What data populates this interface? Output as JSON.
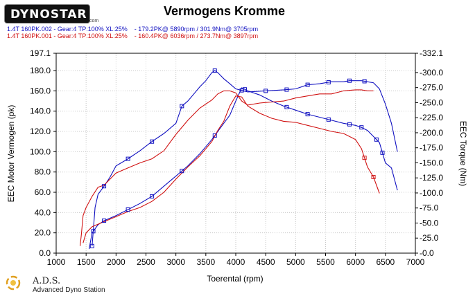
{
  "header": {
    "logo_text": "DYNOSTAR",
    "logo_sub": ".com",
    "title": "Vermogens Kromme"
  },
  "runs": [
    {
      "label": "1.4T 160PK.002 - Gear:4 TP:100% XL:25%    - 179.2PK@ 5890rpm / 301.9Nm@ 3705rpm",
      "color": "#1010c0"
    },
    {
      "label": "1.4T 160PK.001 - Gear:4 TP:100% XL:25%    - 160.4PK@ 6036rpm / 273.7Nm@ 3897rpm",
      "color": "#d01010"
    }
  ],
  "footer": {
    "name": "A.D.S.",
    "desc": "Advanced Dyno Station"
  },
  "chart_data": {
    "type": "line",
    "title": "Vermogens Kromme",
    "xlabel": "Toerental (rpm)",
    "ylabel": "EEC Motor Vermogen (pk)",
    "y2label": "EEC Torque (Nm)",
    "xlim": [
      1000,
      7000
    ],
    "ylim": [
      0,
      197.1
    ],
    "y2lim": [
      0,
      332.1
    ],
    "xticks": [
      "1000",
      "1500",
      "2000",
      "2500",
      "3000",
      "3500",
      "4000",
      "4500",
      "5000",
      "5500",
      "6000",
      "6500",
      "7000"
    ],
    "yticks": [
      "0.0",
      "20.0",
      "40.0",
      "60.0",
      "80.0",
      "100.0",
      "120.0",
      "140.0",
      "160.0",
      "180.0",
      "197.1"
    ],
    "y2ticks": [
      "-0.0",
      "-25.0",
      "-50.0",
      "-75.0",
      "-100.0",
      "-125.0",
      "-150.0",
      "-175.0",
      "-200.0",
      "-225.0",
      "-250.0",
      "-275.0",
      "-300.0",
      "-332.1"
    ],
    "grid": true,
    "series": [
      {
        "name": "1.4T 160PK.002 torque",
        "color": "#1010c0",
        "axis": "left",
        "x": [
          1600,
          1650,
          1700,
          1800,
          1900,
          2000,
          2200,
          2400,
          2600,
          2800,
          3000,
          3100,
          3200,
          3300,
          3400,
          3500,
          3600,
          3650,
          3700,
          3800,
          3900,
          4000,
          4200,
          4500,
          4800,
          5000,
          5200,
          5400,
          5600,
          5800,
          5900,
          6000,
          6100,
          6200,
          6300,
          6400,
          6500,
          6600,
          6700
        ],
        "y": [
          7,
          45,
          58,
          66,
          75,
          86,
          93,
          101,
          110,
          118,
          128,
          145,
          150,
          157,
          164,
          170,
          178,
          180,
          178,
          172,
          167,
          162,
          159,
          160,
          161,
          162,
          166,
          167,
          169,
          169,
          170,
          170,
          170,
          169,
          168,
          162,
          147,
          128,
          100
        ]
      },
      {
        "name": "1.4T 160PK.002 power",
        "color": "#1010c0",
        "axis": "left",
        "x": [
          1550,
          1600,
          1700,
          1800,
          2000,
          2200,
          2400,
          2600,
          2800,
          3000,
          3200,
          3400,
          3600,
          3800,
          3900,
          4000,
          4100,
          4200,
          4400,
          4600,
          4800,
          5000,
          5200,
          5400,
          5600,
          5800,
          6000,
          6100,
          6200,
          6300,
          6400,
          6500,
          6600,
          6700
        ],
        "y": [
          4,
          20,
          28,
          32,
          37,
          43,
          49,
          56,
          66,
          76,
          86,
          98,
          112,
          128,
          136,
          150,
          163,
          160,
          156,
          150,
          145,
          141,
          137,
          134,
          131,
          128,
          126,
          124,
          121,
          115,
          109,
          89,
          84,
          62
        ]
      },
      {
        "name": "1.4T 160PK.001 torque",
        "color": "#d01010",
        "axis": "left",
        "x": [
          1400,
          1420,
          1450,
          1500,
          1600,
          1700,
          1800,
          2000,
          2200,
          2400,
          2600,
          2800,
          3000,
          3200,
          3400,
          3600,
          3700,
          3800,
          3900,
          4000,
          4100,
          4200,
          4400,
          4600,
          4800,
          5000,
          5200,
          5400,
          5600,
          5800,
          6000,
          6100,
          6200,
          6300
        ],
        "y": [
          7,
          18,
          37,
          45,
          56,
          65,
          67,
          79,
          84,
          89,
          93,
          101,
          117,
          131,
          143,
          151,
          157,
          160,
          160,
          158,
          150,
          146,
          148,
          149,
          150,
          153,
          155,
          157,
          157,
          160,
          161,
          161,
          160,
          160
        ]
      },
      {
        "name": "1.4T 160PK.001 power",
        "color": "#d01010",
        "axis": "left",
        "x": [
          1450,
          1500,
          1600,
          1800,
          2000,
          2200,
          2400,
          2600,
          2800,
          3000,
          3200,
          3400,
          3600,
          3700,
          3800,
          3900,
          4000,
          4100,
          4200,
          4400,
          4600,
          4800,
          5000,
          5200,
          5400,
          5600,
          5800,
          6000,
          6100,
          6200,
          6300,
          6400
        ],
        "y": [
          10,
          20,
          26,
          31,
          36,
          41,
          45,
          51,
          60,
          73,
          85,
          96,
          110,
          121,
          130,
          145,
          155,
          154,
          145,
          138,
          133,
          130,
          129,
          126,
          123,
          120,
          118,
          112,
          103,
          85,
          75,
          59
        ]
      }
    ],
    "markers": [
      {
        "series": 0,
        "x": [
          1600,
          1800,
          2200,
          2600,
          3100,
          3650,
          4100,
          4500,
          4850,
          5200,
          5550,
          5900,
          6150
        ]
      },
      {
        "series": 1,
        "x": [
          1620,
          1800,
          2200,
          2600,
          3100,
          3650,
          4150,
          4850,
          5200,
          5550,
          5900,
          6100
        ]
      }
    ]
  }
}
